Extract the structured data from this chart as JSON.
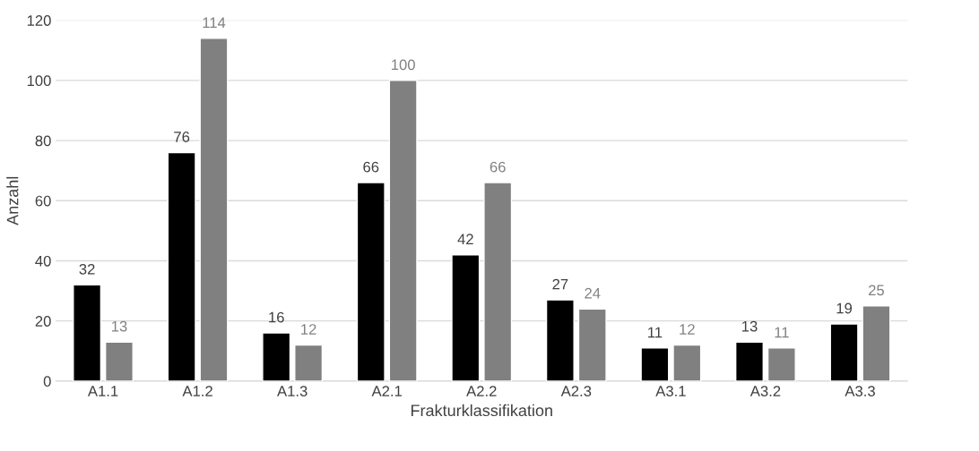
{
  "chart_data": {
    "type": "bar",
    "xlabel": "Frakturklassifikation",
    "ylabel": "Anzahl",
    "categories": [
      "A1.1",
      "A1.2",
      "A1.3",
      "A2.1",
      "A2.2",
      "A2.3",
      "A3.1",
      "A3.2",
      "A3.3"
    ],
    "series": [
      {
        "color": "#000000",
        "values": [
          32,
          76,
          16,
          66,
          42,
          27,
          11,
          13,
          19
        ]
      },
      {
        "color": "#808080",
        "values": [
          13,
          114,
          12,
          100,
          66,
          24,
          12,
          11,
          25
        ]
      }
    ],
    "ylim": [
      0,
      120
    ],
    "yticks": [
      0,
      20,
      40,
      60,
      80,
      100,
      120
    ],
    "grid": "y",
    "data_labels": true
  }
}
